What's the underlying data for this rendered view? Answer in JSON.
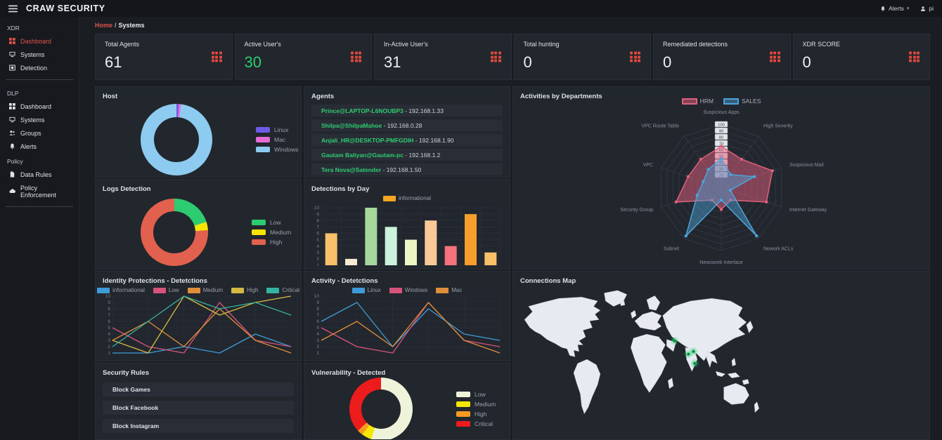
{
  "navbar": {
    "brand": "CRAW SECURITY",
    "alerts_label": "Alerts",
    "user_label": "pi"
  },
  "breadcrumb": {
    "home": "Home",
    "separator": "/",
    "current": "Systems"
  },
  "sidebar": {
    "sections": [
      {
        "label": "XDR",
        "items": [
          {
            "label": "Dashboard",
            "icon": "dashboard-grid-icon",
            "active": true
          },
          {
            "label": "Systems",
            "icon": "monitor-icon",
            "active": false
          },
          {
            "label": "Detection",
            "icon": "detection-target-icon",
            "active": false
          }
        ]
      },
      {
        "label": "DLP",
        "items": [
          {
            "label": "Dashboard",
            "icon": "dashboard-grid-icon",
            "active": false
          },
          {
            "label": "Systems",
            "icon": "monitor-icon",
            "active": false
          },
          {
            "label": "Groups",
            "icon": "groups-icon",
            "active": false
          },
          {
            "label": "Alerts",
            "icon": "bell-icon",
            "active": false
          }
        ]
      },
      {
        "label": "Policy",
        "items": [
          {
            "label": "Data Rules",
            "icon": "file-icon",
            "active": false
          },
          {
            "label": "Policy Enforcement",
            "icon": "cloud-icon",
            "active": false
          }
        ]
      }
    ]
  },
  "stat_cards": [
    {
      "label": "Total Agents",
      "value": "61",
      "color": "#eef1f4"
    },
    {
      "label": "Active User's",
      "value": "30",
      "color": "#2ecc71"
    },
    {
      "label": "In-Active User's",
      "value": "31",
      "color": "#eef1f4"
    },
    {
      "label": "Total hunting",
      "value": "0",
      "color": "#eef1f4"
    },
    {
      "label": "Remediated detections",
      "value": "0",
      "color": "#eef1f4"
    },
    {
      "label": "XDR SCORE",
      "value": "0",
      "color": "#eef1f4"
    }
  ],
  "panels": {
    "host": {
      "title": "Host"
    },
    "agents": {
      "title": "Agents",
      "items": [
        {
          "name": "Prince@LAPTOP-L6NOUBP3",
          "ip": "192.168.1.33"
        },
        {
          "name": "Shilpa@ShilpaMahoe",
          "ip": "192.168.0.28"
        },
        {
          "name": "Anjali_HR@DESKTOP-PMFGDIH",
          "ip": "192.168.1.90"
        },
        {
          "name": "Gautam Baliyan@Gautam-pc",
          "ip": "192.168.1.2"
        },
        {
          "name": "Tera Nova@Satender",
          "ip": "192.168.1.50"
        }
      ]
    },
    "activities": {
      "title": "Activities by Departments"
    },
    "logs": {
      "title": "Logs Detection"
    },
    "detections_day": {
      "title": "Detections by Day"
    },
    "identity": {
      "title": "Identity Protections - Detetctions"
    },
    "activity": {
      "title": "Activity - Detetctions"
    },
    "security_rules": {
      "title": "Security Rules",
      "items": [
        "Block Games",
        "Block Facebook",
        "Block Instagram"
      ]
    },
    "vulnerability": {
      "title": "Vulnerability - Detected"
    },
    "map": {
      "title": "Connections Map"
    }
  },
  "chart_data": [
    {
      "id": "host",
      "type": "pie",
      "title": "Host",
      "donut": true,
      "legend_position": "right",
      "labels": [
        "Linux",
        "Mac",
        "Windows"
      ],
      "values": [
        1,
        1,
        98
      ],
      "colors": [
        "#6c5ce7",
        "#e36bd3",
        "#8dcbf0"
      ]
    },
    {
      "id": "logs",
      "type": "pie",
      "title": "Logs Detection",
      "donut": true,
      "legend_position": "right",
      "labels": [
        "Low",
        "Medium",
        "High"
      ],
      "values": [
        20,
        4,
        76
      ],
      "colors": [
        "#2ecc71",
        "#f7e500",
        "#e2614e"
      ]
    },
    {
      "id": "vulnerability",
      "type": "pie",
      "title": "Vulnerability - Detected",
      "donut": true,
      "legend_position": "right",
      "labels": [
        "Low",
        "Medium",
        "High",
        "Critical"
      ],
      "values": [
        55,
        5,
        3,
        37
      ],
      "colors": [
        "#eff3da",
        "#f5e800",
        "#f59a23",
        "#ec1c1c"
      ]
    },
    {
      "id": "detections_day",
      "type": "bar",
      "title": "Detections by Day",
      "ylim": [
        1,
        10
      ],
      "grid": true,
      "legend": [
        {
          "label": "informational",
          "color": "#f5a623"
        }
      ],
      "values": [
        6,
        2,
        10,
        7,
        5,
        8,
        4,
        9,
        3
      ],
      "bar_colors": [
        "#f9c06a",
        "#f7e9d4",
        "#a8d79b",
        "#ccf2de",
        "#eef6c3",
        "#f9c998",
        "#f4737c",
        "#f59e2d",
        "#f9c06a"
      ]
    },
    {
      "id": "identity",
      "type": "line",
      "title": "Identity Protections - Detetctions",
      "ylim": [
        1,
        10
      ],
      "grid": true,
      "legend_position": "top",
      "series": [
        {
          "name": "informational",
          "color": "#3f9bd8",
          "values": [
            1,
            1,
            2,
            1,
            4,
            2
          ]
        },
        {
          "name": "Low",
          "color": "#d6537c",
          "values": [
            5,
            2,
            1,
            9,
            3,
            2
          ]
        },
        {
          "name": "Medium",
          "color": "#df8f3c",
          "values": [
            3,
            6,
            2,
            8,
            3,
            1
          ]
        },
        {
          "name": "High",
          "color": "#d4b945",
          "values": [
            3,
            1,
            10,
            7,
            9,
            10
          ]
        },
        {
          "name": "Critical",
          "color": "#35b3a2",
          "values": [
            2,
            6,
            10,
            8,
            9,
            7
          ]
        }
      ]
    },
    {
      "id": "activity",
      "type": "line",
      "title": "Activity - Detetctions",
      "ylim": [
        1,
        10
      ],
      "grid": true,
      "legend_position": "top",
      "series": [
        {
          "name": "Linux",
          "color": "#3f9bd8",
          "values": [
            6,
            9,
            2,
            8,
            4,
            3
          ]
        },
        {
          "name": "Windows",
          "color": "#d6537c",
          "values": [
            5,
            2,
            1,
            9,
            3,
            2
          ]
        },
        {
          "name": "Mac",
          "color": "#df8f3c",
          "values": [
            3,
            6,
            2,
            9,
            3,
            1
          ]
        }
      ]
    },
    {
      "id": "activities",
      "type": "radar",
      "title": "Activities by Departments",
      "rmax": 100,
      "scale_ticks": [
        100,
        90,
        80,
        70,
        60,
        50,
        40,
        30,
        20
      ],
      "axes": [
        "Suspicious Apps",
        "High Severity",
        "Suspicious Mail",
        "Internet Gateway",
        "Nework ACLs",
        "Newswork Interface",
        "Subnet",
        "Security Group",
        "VPC",
        "VPC Route Table"
      ],
      "series": [
        {
          "name": "HRM",
          "color": "#e0607e",
          "fill": "rgba(224,96,126,0.5)",
          "values": [
            65,
            55,
            85,
            75,
            25,
            35,
            25,
            75,
            55,
            55
          ]
        },
        {
          "name": "SALES",
          "color": "#4da3dc",
          "fill": "rgba(77,163,220,0.45)",
          "values": [
            45,
            25,
            55,
            15,
            95,
            20,
            95,
            40,
            30,
            35
          ]
        }
      ]
    },
    {
      "id": "map",
      "type": "map",
      "title": "Connections Map",
      "marker_color": "#2ecc71",
      "markers": [
        {
          "x": 61,
          "y": 39
        },
        {
          "x": 66.5,
          "y": 49
        },
        {
          "x": 68.5,
          "y": 47
        },
        {
          "x": 69,
          "y": 56
        }
      ]
    }
  ]
}
